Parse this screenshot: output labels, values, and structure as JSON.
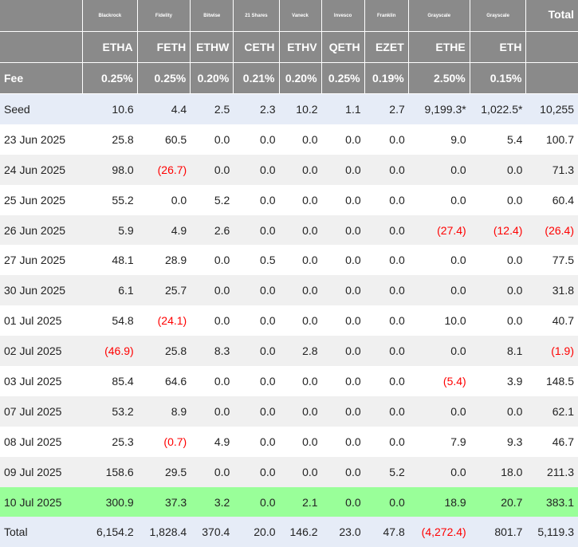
{
  "issuers": [
    "Blackrock",
    "Fidelity",
    "Bitwise",
    "21 Shares",
    "Vaneck",
    "Invesco",
    "Franklin",
    "Grayscale",
    "Grayscale"
  ],
  "total_header": "Total",
  "tickers": [
    "ETHA",
    "FETH",
    "ETHW",
    "CETH",
    "ETHV",
    "QETH",
    "EZET",
    "ETHE",
    "ETH"
  ],
  "fee_label": "Fee",
  "fees": [
    "0.25%",
    "0.25%",
    "0.20%",
    "0.21%",
    "0.20%",
    "0.25%",
    "0.19%",
    "2.50%",
    "0.15%"
  ],
  "colors": {
    "header_bg": "#8a8a8a",
    "seed_bg": "#e6ecf7",
    "alt_row_bg": "#f0f0f0",
    "highlight_bg": "#99ff99",
    "negative": "#ff0000"
  },
  "rows": [
    {
      "label": "Seed",
      "values": [
        "10.6",
        "4.4",
        "2.5",
        "2.3",
        "10.2",
        "1.1",
        "2.7",
        "9,199.3*",
        "1,022.5*",
        "10,255"
      ]
    },
    {
      "label": "23 Jun 2025",
      "values": [
        "25.8",
        "60.5",
        "0.0",
        "0.0",
        "0.0",
        "0.0",
        "0.0",
        "9.0",
        "5.4",
        "100.7"
      ]
    },
    {
      "label": "24 Jun 2025",
      "values": [
        "98.0",
        "(26.7)",
        "0.0",
        "0.0",
        "0.0",
        "0.0",
        "0.0",
        "0.0",
        "0.0",
        "71.3"
      ]
    },
    {
      "label": "25 Jun 2025",
      "values": [
        "55.2",
        "0.0",
        "5.2",
        "0.0",
        "0.0",
        "0.0",
        "0.0",
        "0.0",
        "0.0",
        "60.4"
      ]
    },
    {
      "label": "26 Jun 2025",
      "values": [
        "5.9",
        "4.9",
        "2.6",
        "0.0",
        "0.0",
        "0.0",
        "0.0",
        "(27.4)",
        "(12.4)",
        "(26.4)"
      ]
    },
    {
      "label": "27 Jun 2025",
      "values": [
        "48.1",
        "28.9",
        "0.0",
        "0.5",
        "0.0",
        "0.0",
        "0.0",
        "0.0",
        "0.0",
        "77.5"
      ]
    },
    {
      "label": "30 Jun 2025",
      "values": [
        "6.1",
        "25.7",
        "0.0",
        "0.0",
        "0.0",
        "0.0",
        "0.0",
        "0.0",
        "0.0",
        "31.8"
      ]
    },
    {
      "label": "01 Jul 2025",
      "values": [
        "54.8",
        "(24.1)",
        "0.0",
        "0.0",
        "0.0",
        "0.0",
        "0.0",
        "10.0",
        "0.0",
        "40.7"
      ]
    },
    {
      "label": "02 Jul 2025",
      "values": [
        "(46.9)",
        "25.8",
        "8.3",
        "0.0",
        "2.8",
        "0.0",
        "0.0",
        "0.0",
        "8.1",
        "(1.9)"
      ]
    },
    {
      "label": "03 Jul 2025",
      "values": [
        "85.4",
        "64.6",
        "0.0",
        "0.0",
        "0.0",
        "0.0",
        "0.0",
        "(5.4)",
        "3.9",
        "148.5"
      ]
    },
    {
      "label": "07 Jul 2025",
      "values": [
        "53.2",
        "8.9",
        "0.0",
        "0.0",
        "0.0",
        "0.0",
        "0.0",
        "0.0",
        "0.0",
        "62.1"
      ]
    },
    {
      "label": "08 Jul 2025",
      "values": [
        "25.3",
        "(0.7)",
        "4.9",
        "0.0",
        "0.0",
        "0.0",
        "0.0",
        "7.9",
        "9.3",
        "46.7"
      ]
    },
    {
      "label": "09 Jul 2025",
      "values": [
        "158.6",
        "29.5",
        "0.0",
        "0.0",
        "0.0",
        "0.0",
        "5.2",
        "0.0",
        "18.0",
        "211.3"
      ]
    },
    {
      "label": "10 Jul 2025",
      "values": [
        "300.9",
        "37.3",
        "3.2",
        "0.0",
        "2.1",
        "0.0",
        "0.0",
        "18.9",
        "20.7",
        "383.1"
      ]
    },
    {
      "label": "Total",
      "values": [
        "6,154.2",
        "1,828.4",
        "370.4",
        "20.0",
        "146.2",
        "23.0",
        "47.8",
        "(4,272.4)",
        "801.7",
        "5,119.3"
      ]
    }
  ]
}
